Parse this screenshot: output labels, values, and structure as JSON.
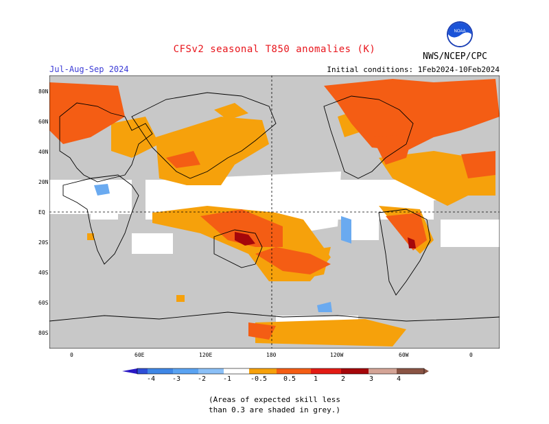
{
  "header": {
    "title": "CFSv2 seasonal T850 anomalies (K)",
    "period": "Jul-Aug-Sep 2024",
    "initial_conditions": "Initial conditions: 1Feb2024-10Feb2024",
    "agency": "NWS/NCEP/CPC",
    "logo_text": "NOAA"
  },
  "map": {
    "lat_labels": [
      "80N",
      "60N",
      "40N",
      "20N",
      "EQ",
      "20S",
      "40S",
      "60S",
      "80S"
    ],
    "lon_labels": [
      "0",
      "60E",
      "120E",
      "180",
      "120W",
      "60W",
      "0"
    ]
  },
  "colorbar": {
    "labels": [
      "-4",
      "-3",
      "-2",
      "-1",
      "-0.5",
      "0.5",
      "1",
      "2",
      "3",
      "4"
    ],
    "colors": [
      "#2a18c4",
      "#2f4fd8",
      "#3f87e6",
      "#5aa3f2",
      "#8bc0f7",
      "#ffffff",
      "#f6a10b",
      "#f45d14",
      "#e31b14",
      "#a5070a",
      "#d4a496",
      "#8a5444"
    ]
  },
  "footnote": {
    "line1": "(Areas of expected skill less",
    "line2": "than 0.3 are shaded in grey.)"
  },
  "legend_colors": {
    "grey": "#c8c8c8",
    "orange": "#f6a10b",
    "red_orange": "#f45d14",
    "dark_red": "#a5070a",
    "light_blue": "#6aaaf0"
  }
}
